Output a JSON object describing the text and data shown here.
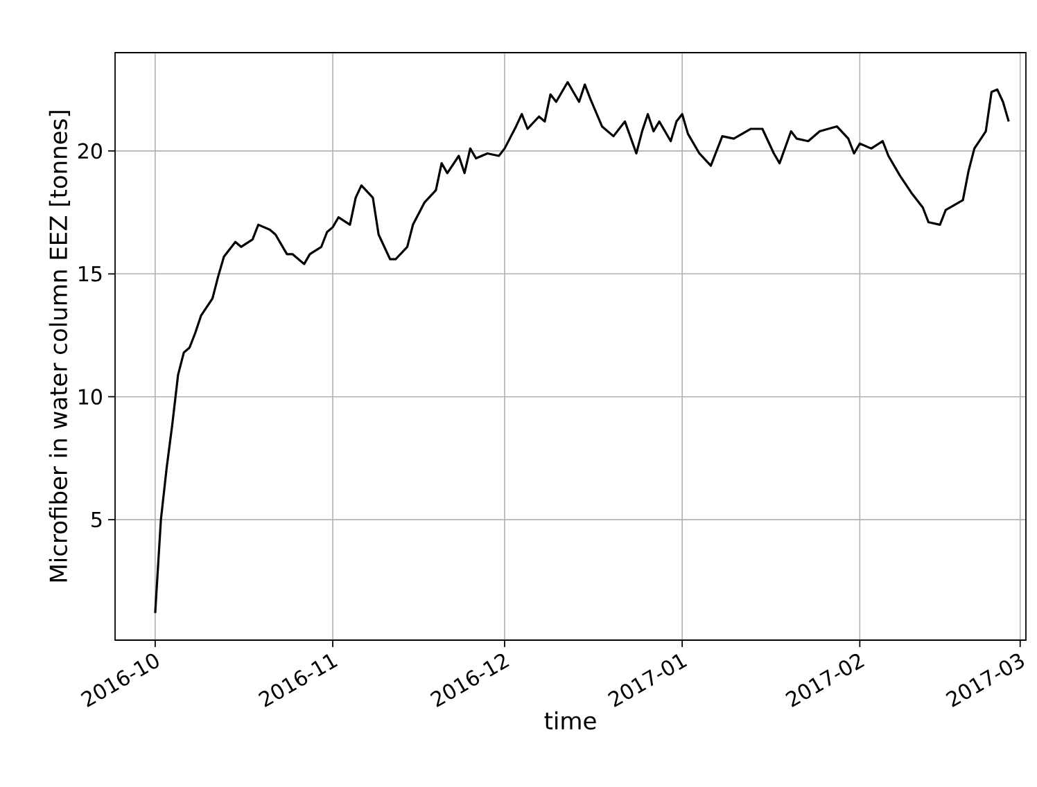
{
  "chart_data": {
    "type": "line",
    "xlabel": "time",
    "ylabel": "Microfiber in water column EEZ [tonnes]",
    "xlim": [
      "2016-09-24",
      "2017-03-02"
    ],
    "ylim": [
      0.1,
      24.0
    ],
    "xticks": [
      "2016-10",
      "2016-11",
      "2016-12",
      "2017-01",
      "2017-02",
      "2017-03"
    ],
    "yticks": [
      5,
      10,
      15,
      20
    ],
    "grid": true,
    "marker": "none",
    "line_style": "solid",
    "series": [
      {
        "color": "#000000",
        "x": [
          "2016-10-01",
          "2016-10-02",
          "2016-10-03",
          "2016-10-04",
          "2016-10-05",
          "2016-10-06",
          "2016-10-07",
          "2016-10-08",
          "2016-10-09",
          "2016-10-11",
          "2016-10-12",
          "2016-10-13",
          "2016-10-15",
          "2016-10-16",
          "2016-10-18",
          "2016-10-19",
          "2016-10-21",
          "2016-10-22",
          "2016-10-24",
          "2016-10-25",
          "2016-10-27",
          "2016-10-28",
          "2016-10-30",
          "2016-10-31",
          "2016-11-01",
          "2016-11-02",
          "2016-11-04",
          "2016-11-05",
          "2016-11-06",
          "2016-11-08",
          "2016-11-09",
          "2016-11-11",
          "2016-11-12",
          "2016-11-14",
          "2016-11-15",
          "2016-11-17",
          "2016-11-19",
          "2016-11-20",
          "2016-11-21",
          "2016-11-23",
          "2016-11-24",
          "2016-11-25",
          "2016-11-26",
          "2016-11-28",
          "2016-11-30",
          "2016-12-01",
          "2016-12-03",
          "2016-12-04",
          "2016-12-05",
          "2016-12-07",
          "2016-12-08",
          "2016-12-09",
          "2016-12-10",
          "2016-12-12",
          "2016-12-14",
          "2016-12-15",
          "2016-12-16",
          "2016-12-18",
          "2016-12-20",
          "2016-12-22",
          "2016-12-24",
          "2016-12-25",
          "2016-12-26",
          "2016-12-27",
          "2016-12-28",
          "2016-12-30",
          "2016-12-31",
          "2017-01-01",
          "2017-01-02",
          "2017-01-04",
          "2017-01-06",
          "2017-01-08",
          "2017-01-10",
          "2017-01-13",
          "2017-01-15",
          "2017-01-17",
          "2017-01-18",
          "2017-01-20",
          "2017-01-21",
          "2017-01-23",
          "2017-01-25",
          "2017-01-28",
          "2017-01-30",
          "2017-01-31",
          "2017-02-01",
          "2017-02-03",
          "2017-02-05",
          "2017-02-06",
          "2017-02-08",
          "2017-02-10",
          "2017-02-12",
          "2017-02-13",
          "2017-02-15",
          "2017-02-16",
          "2017-02-19",
          "2017-02-20",
          "2017-02-21",
          "2017-02-23",
          "2017-02-24",
          "2017-02-25",
          "2017-02-26",
          "2017-02-27"
        ],
        "values": [
          1.2,
          5.0,
          7.1,
          8.9,
          10.9,
          11.8,
          12.0,
          12.6,
          13.3,
          14.0,
          14.9,
          15.7,
          16.3,
          16.1,
          16.4,
          17.0,
          16.8,
          16.6,
          15.8,
          15.8,
          15.4,
          15.8,
          16.1,
          16.7,
          16.9,
          17.3,
          17.0,
          18.1,
          18.6,
          18.1,
          16.6,
          15.6,
          15.6,
          16.1,
          17.0,
          17.9,
          18.4,
          19.5,
          19.1,
          19.8,
          19.1,
          20.1,
          19.7,
          19.9,
          19.8,
          20.1,
          21.0,
          21.5,
          20.9,
          21.4,
          21.2,
          22.3,
          22.0,
          22.8,
          22.0,
          22.7,
          22.1,
          21.0,
          20.6,
          21.2,
          19.9,
          20.8,
          21.5,
          20.8,
          21.2,
          20.4,
          21.2,
          21.5,
          20.7,
          19.9,
          19.4,
          20.6,
          20.5,
          20.9,
          20.9,
          19.9,
          19.5,
          20.8,
          20.5,
          20.4,
          20.8,
          21.0,
          20.5,
          19.9,
          20.3,
          20.1,
          20.4,
          19.8,
          19.0,
          18.3,
          17.7,
          17.1,
          17.0,
          17.6,
          18.0,
          19.2,
          20.1,
          20.8,
          22.4,
          22.5,
          22.0,
          21.2
        ]
      }
    ]
  }
}
